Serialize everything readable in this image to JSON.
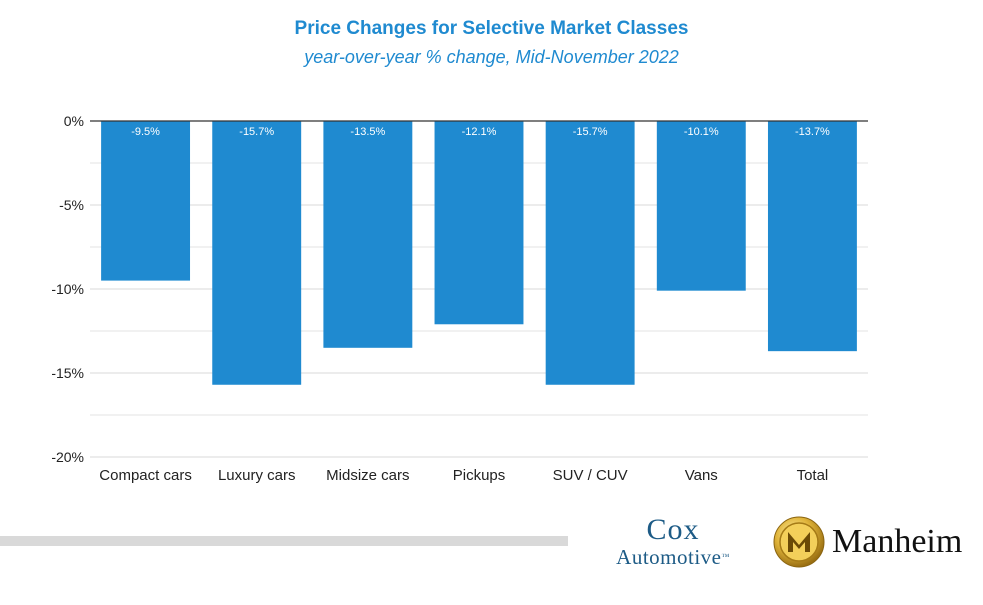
{
  "chart_data": {
    "type": "bar",
    "title": "Price Changes for Selective Market Classes",
    "subtitle": "year-over-year % change, Mid-November 2022",
    "categories": [
      "Compact cars",
      "Luxury cars",
      "Midsize cars",
      "Pickups",
      "SUV / CUV",
      "Vans",
      "Total"
    ],
    "values": [
      -9.5,
      -15.7,
      -13.5,
      -12.1,
      -15.7,
      -10.1,
      -13.7
    ],
    "data_labels": [
      "-9.5%",
      "-15.7%",
      "-13.5%",
      "-12.1%",
      "-15.7%",
      "-10.1%",
      "-13.7%"
    ],
    "yticks": [
      0,
      -5,
      -10,
      -15,
      -20
    ],
    "ytick_labels": [
      "0%",
      "-5%",
      "-10%",
      "-15%",
      "-20%"
    ],
    "ylim": [
      -20,
      0
    ],
    "xlabel": "",
    "ylabel": "",
    "grid": true,
    "bar_color": "#1f8ad0"
  },
  "branding": {
    "cox_line1": "Cox",
    "cox_line2": "Automotive",
    "cox_trademark": "™",
    "manheim": "Manheim"
  }
}
